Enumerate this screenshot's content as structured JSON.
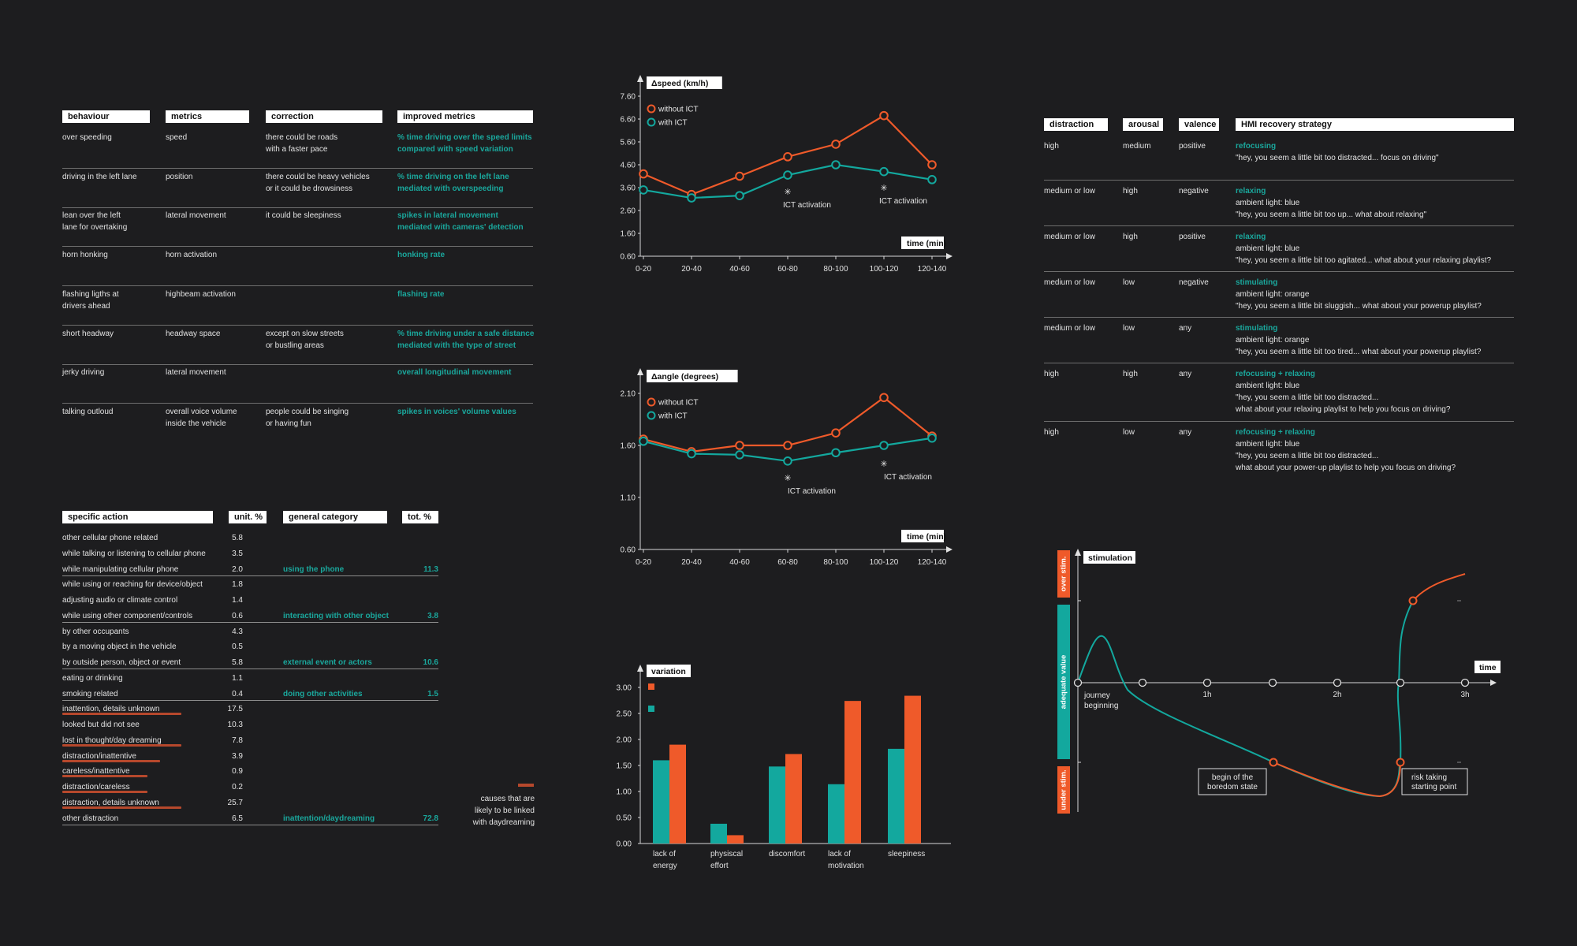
{
  "behaviour_table": {
    "headers": [
      "behaviour",
      "metrics",
      "correction",
      "improved metrics"
    ],
    "rows": [
      {
        "behaviour": "over speeding",
        "metrics": "speed",
        "correction": "there could be roads\nwith a faster pace",
        "improved": "% time driving over the speed limits\ncompared with speed variation"
      },
      {
        "behaviour": "driving in the left lane",
        "metrics": "position",
        "correction": "there could be heavy vehicles\nor it could be drowsiness",
        "improved": "% time driving on the left lane\n mediated with overspeeding"
      },
      {
        "behaviour": "lean over the left\nlane for overtaking",
        "metrics": "lateral movement",
        "correction": "it could be sleepiness",
        "improved": "spikes in lateral movement\nmediated with cameras' detection"
      },
      {
        "behaviour": "horn honking",
        "metrics": "horn activation",
        "correction": "",
        "improved": "honking rate"
      },
      {
        "behaviour": "flashing ligths at\ndrivers ahead",
        "metrics": "highbeam activation",
        "correction": "",
        "improved": "flashing rate"
      },
      {
        "behaviour": "short headway",
        "metrics": "headway space",
        "correction": "except on slow streets\nor bustling areas",
        "improved": "% time driving under a safe distance\nmediated with the type of street"
      },
      {
        "behaviour": "jerky driving",
        "metrics": "lateral movement",
        "correction": "",
        "improved": "overall longitudinal movement"
      },
      {
        "behaviour": "talking outloud",
        "metrics": "overall voice volume\ninside the vehicle",
        "correction": "people could be singing\nor having fun",
        "improved": "spikes in voices' volume values"
      }
    ]
  },
  "action_table": {
    "headers": [
      "specific action",
      "unit. %",
      "general category",
      "tot. %"
    ],
    "rows": [
      {
        "action": "other cellular phone related",
        "unit": "5.8",
        "category": "",
        "tot": "",
        "ul": false
      },
      {
        "action": "while talking or listening to cellular phone",
        "unit": "3.5",
        "category": "",
        "tot": "",
        "ul": false
      },
      {
        "action": "while manipulating cellular phone",
        "unit": "2.0",
        "category": "using the phone",
        "tot": "11.3",
        "ul": false
      },
      {
        "action": "while using or reaching for device/object",
        "unit": "1.8",
        "category": "",
        "tot": "",
        "ul": false
      },
      {
        "action": "adjusting audio or climate control",
        "unit": "1.4",
        "category": "",
        "tot": "",
        "ul": false
      },
      {
        "action": "while using other component/controls",
        "unit": "0.6",
        "category": "interacting with other object",
        "tot": "3.8",
        "ul": false
      },
      {
        "action": "by other occupants",
        "unit": "4.3",
        "category": "",
        "tot": "",
        "ul": false
      },
      {
        "action": "by a moving object in the vehicle",
        "unit": "0.5",
        "category": "",
        "tot": "",
        "ul": false
      },
      {
        "action": "by outside person, object or event",
        "unit": "5.8",
        "category": "external event or actors",
        "tot": "10.6",
        "ul": false
      },
      {
        "action": "eating or drinking",
        "unit": "1.1",
        "category": "",
        "tot": "",
        "ul": false
      },
      {
        "action": "smoking related",
        "unit": "0.4",
        "category": "doing other activities",
        "tot": "1.5",
        "ul": false
      },
      {
        "action": "inattention, details unknown",
        "unit": "17.5",
        "category": "",
        "tot": "",
        "ul": true
      },
      {
        "action": "looked but did not see",
        "unit": "10.3",
        "category": "",
        "tot": "",
        "ul": false
      },
      {
        "action": "lost in thought/day dreaming",
        "unit": "7.8",
        "category": "",
        "tot": "",
        "ul": true
      },
      {
        "action": "distraction/inattentive",
        "unit": "3.9",
        "category": "",
        "tot": "",
        "ul": true
      },
      {
        "action": "careless/inattentive",
        "unit": "0.9",
        "category": "",
        "tot": "",
        "ul": true
      },
      {
        "action": "distraction/careless",
        "unit": "0.2",
        "category": "",
        "tot": "",
        "ul": true
      },
      {
        "action": "distraction, details unknown",
        "unit": "25.7",
        "category": "",
        "tot": "",
        "ul": true
      },
      {
        "action": "other distraction",
        "unit": "6.5",
        "category": "inattention/daydreaming",
        "tot": "72.8",
        "ul": false
      }
    ],
    "legend_note": "causes that are\nlikely to be linked\nwith daydreaming"
  },
  "hmi_table": {
    "headers": [
      "distraction",
      "arousal",
      "valence",
      "HMI recovery strategy"
    ],
    "rows": [
      {
        "distraction": "high",
        "arousal": "medium",
        "valence": "positive",
        "strategy": "refocusing",
        "detail": "\"hey, you seem a little bit too distracted... focus on driving\""
      },
      {
        "distraction": "medium or low",
        "arousal": "high",
        "valence": "negative",
        "strategy": "relaxing",
        "detail": "ambient light: blue\n\"hey, you seem a little bit too up... what about relaxing\""
      },
      {
        "distraction": "medium or low",
        "arousal": "high",
        "valence": "positive",
        "strategy": "relaxing",
        "detail": "ambient light: blue\n\"hey, you seem a little bit too agitated... what about your relaxing playlist?"
      },
      {
        "distraction": "medium or low",
        "arousal": "low",
        "valence": "negative",
        "strategy": "stimulating",
        "detail": "ambient light: orange\n\"hey, you seem a little bit sluggish... what about your powerup playlist?"
      },
      {
        "distraction": "medium or low",
        "arousal": "low",
        "valence": "any",
        "strategy": "stimulating",
        "detail": "ambient light: orange\n\"hey, you seem a little bit too tired... what about your powerup playlist?"
      },
      {
        "distraction": "high",
        "arousal": "high",
        "valence": "any",
        "strategy": "refocusing + relaxing",
        "detail": "ambient light: blue\n\"hey, you seem a little bit too distracted...\nwhat about your relaxing playlist to help you focus on driving?"
      },
      {
        "distraction": "high",
        "arousal": "low",
        "valence": "any",
        "strategy": "refocusing + relaxing",
        "detail": "ambient light: blue\n\"hey, you seem a little bit too distracted...\nwhat about your power-up playlist to help you focus on driving?"
      }
    ]
  },
  "colors": {
    "orange": "#ef5a2a",
    "teal": "#13a89e",
    "bg": "#1d1d1f"
  },
  "chart_data": [
    {
      "type": "line",
      "ylabel": "Δspeed (km/h)",
      "xlabel": "time (min)",
      "categories": [
        "0-20",
        "20-40",
        "40-60",
        "60-80",
        "80-100",
        "100-120",
        "120-140"
      ],
      "yticks": [
        "7.60",
        "6.60",
        "5.60",
        "4.60",
        "3.60",
        "2.60",
        "1.60",
        "0.60"
      ],
      "ylim": [
        0.6,
        7.6
      ],
      "series": [
        {
          "name": "without ICT",
          "color": "#ef5a2a",
          "values": [
            4.2,
            3.3,
            4.1,
            4.95,
            5.5,
            6.75,
            4.6
          ]
        },
        {
          "name": "with ICT",
          "color": "#13a89e",
          "values": [
            3.5,
            3.15,
            3.25,
            4.15,
            4.6,
            4.3,
            3.95
          ]
        }
      ],
      "annotations": [
        {
          "text": "ICT activation",
          "x_index": 3
        },
        {
          "text": "ICT activation",
          "x_index": 5
        }
      ]
    },
    {
      "type": "line",
      "ylabel": "Δangle (degrees)",
      "xlabel": "time (min)",
      "categories": [
        "0-20",
        "20-40",
        "40-60",
        "60-80",
        "80-100",
        "100-120",
        "120-140"
      ],
      "yticks": [
        "2.10",
        "1.60",
        "1.10",
        "0.60"
      ],
      "ylim": [
        0.6,
        2.1
      ],
      "series": [
        {
          "name": "without ICT",
          "color": "#ef5a2a",
          "values": [
            1.66,
            1.54,
            1.6,
            1.6,
            1.72,
            2.06,
            1.69
          ]
        },
        {
          "name": "with ICT",
          "color": "#13a89e",
          "values": [
            1.64,
            1.52,
            1.51,
            1.45,
            1.53,
            1.6,
            1.67
          ]
        }
      ],
      "annotations": [
        {
          "text": "ICT activation",
          "x_index": 3
        },
        {
          "text": "ICT activation",
          "x_index": 5
        }
      ]
    },
    {
      "type": "bar",
      "ylabel": "variation",
      "categories": [
        "lack of\nenergy",
        "physiscal\neffort",
        "discomfort",
        "lack of\nmotivation",
        "sleepiness"
      ],
      "yticks": [
        "3.00",
        "2.50",
        "2.00",
        "1.50",
        "1.00",
        "0.50",
        "0.00"
      ],
      "ylim": [
        0,
        3.0
      ],
      "series": [
        {
          "name": "",
          "color": "#13a89e",
          "values": [
            1.6,
            0.38,
            1.48,
            1.14,
            1.82
          ]
        },
        {
          "name": "",
          "color": "#ef5a2a",
          "values": [
            1.9,
            0.16,
            1.72,
            2.74,
            2.84
          ]
        }
      ]
    },
    {
      "type": "line",
      "ylabel": "stimulation",
      "xlabel": "time",
      "zones": [
        "over stim.",
        "adequate value",
        "under stim."
      ],
      "xticks": [
        "1h",
        "2h",
        "3h"
      ],
      "annotations": [
        "journey\nbeginning",
        "begin of the\nboredom state",
        "risk taking\nstarting point"
      ]
    }
  ]
}
